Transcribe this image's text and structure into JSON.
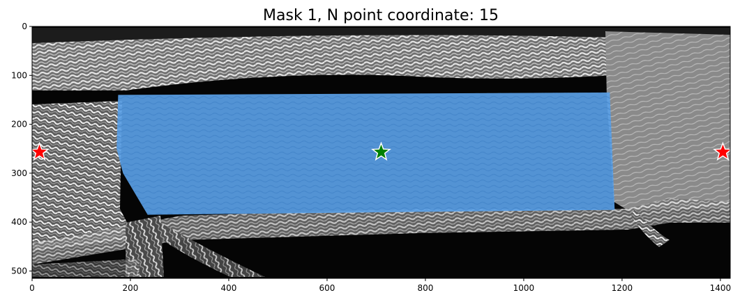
{
  "figure": {
    "title": "Mask 1, N point coordinate: 15"
  },
  "image_axes": {
    "x_ticks": [
      {
        "value": 0,
        "label": "0"
      },
      {
        "value": 200,
        "label": "200"
      },
      {
        "value": 400,
        "label": "400"
      },
      {
        "value": 600,
        "label": "600"
      },
      {
        "value": 800,
        "label": "800"
      },
      {
        "value": 1000,
        "label": "1000"
      },
      {
        "value": 1200,
        "label": "1200"
      },
      {
        "value": 1400,
        "label": "1400"
      }
    ],
    "y_ticks": [
      {
        "value": 0,
        "label": "0"
      },
      {
        "value": 100,
        "label": "100"
      },
      {
        "value": 200,
        "label": "200"
      },
      {
        "value": 300,
        "label": "300"
      },
      {
        "value": 400,
        "label": "400"
      },
      {
        "value": 500,
        "label": "500"
      }
    ],
    "x_range": [
      0,
      1420
    ],
    "y_range": [
      515,
      0
    ]
  },
  "mask": {
    "color": "#5aa0e6",
    "polygon": [
      [
        175,
        140
      ],
      [
        1175,
        135
      ],
      [
        1185,
        375
      ],
      [
        235,
        385
      ],
      [
        185,
        300
      ],
      [
        172,
        250
      ]
    ]
  },
  "points": [
    {
      "x": 15,
      "y": 257,
      "color": "#ff0000",
      "kind": "negative"
    },
    {
      "x": 710,
      "y": 257,
      "color": "#008000",
      "kind": "positive"
    },
    {
      "x": 1405,
      "y": 257,
      "color": "#ff0000",
      "kind": "negative"
    }
  ]
}
